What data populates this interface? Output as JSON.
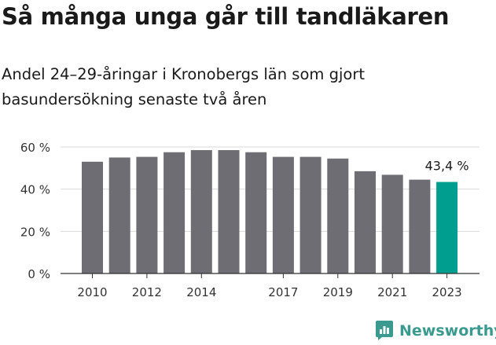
{
  "title": "Så många unga går till tandläkaren",
  "subtitle": "Andel 24–29-åringar i Kronobergs län som gjort basundersökning senaste två åren",
  "brand": {
    "name": "Newsworthy",
    "icon": "newsworthy-logo-icon"
  },
  "colors": {
    "bar": "#6e6d73",
    "highlight": "#009e8e",
    "grid": "#d9d9d9",
    "axis": "#333333"
  },
  "chart_data": {
    "type": "bar",
    "categories": [
      "2010",
      "2011",
      "2012",
      "2013",
      "2014",
      "2015",
      "2016",
      "2017",
      "2018",
      "2019",
      "2020",
      "2021",
      "2022",
      "2023"
    ],
    "values": [
      53,
      55,
      55.3,
      57.5,
      58.5,
      58.5,
      57.5,
      55.3,
      55.3,
      54.5,
      48.5,
      46.8,
      44.5,
      43.4
    ],
    "x_tick_labels": [
      "2010",
      "2012",
      "2014",
      "2017",
      "2019",
      "2021",
      "2023"
    ],
    "y_ticks": [
      0,
      20,
      40,
      60
    ],
    "y_tick_labels": [
      "0 %",
      "20 %",
      "40 %",
      "60 %"
    ],
    "ylim": [
      0,
      60
    ],
    "highlight_category": "2023",
    "annotation": {
      "category": "2023",
      "label": "43,4 %"
    },
    "grid": true,
    "legend": "none",
    "xlabel": "",
    "ylabel": ""
  }
}
